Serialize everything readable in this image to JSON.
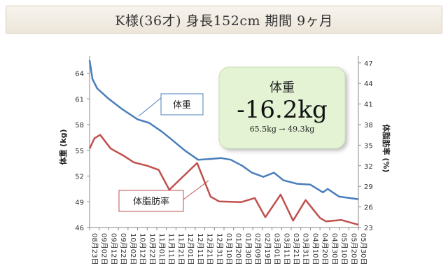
{
  "header": {
    "title": "K様(36才) 身長152cm 期間 9ヶ月"
  },
  "summary": {
    "label": "体重",
    "change": "-16.2kg",
    "detail": "65.5kg → 49.3kg",
    "box_color": "#e3f3d3"
  },
  "callouts": {
    "weight": "体重",
    "body_fat": "体脂肪率"
  },
  "chart_data": {
    "type": "line",
    "title": "",
    "xlabel": "",
    "ylabel": "体重 (kg)",
    "y2label": "体脂肪率 (%)",
    "ylim": [
      46,
      66
    ],
    "y2lim": [
      23,
      48
    ],
    "yticks": [
      46,
      49,
      52,
      55,
      58,
      61,
      64
    ],
    "y2ticks": [
      23,
      26,
      29,
      32,
      35,
      38,
      41,
      44,
      47
    ],
    "categories": [
      "08月23日",
      "09月02日",
      "09月12日",
      "09月22日",
      "10月02日",
      "10月12日",
      "10月22日",
      "11月01日",
      "11月11日",
      "11月21日",
      "12月01日",
      "12月11日",
      "12月21日",
      "12月31日",
      "01月10日",
      "01月20日",
      "01月30日",
      "02月09日",
      "02月19日",
      "03月01日",
      "03月11日",
      "03月21日",
      "03月31日",
      "04月10日",
      "04月20日",
      "04月30日",
      "05月10日",
      "05月20日",
      "05月30日"
    ],
    "series": [
      {
        "name": "体重",
        "axis": "left",
        "color": "#4a7ebb",
        "points": [
          {
            "x": "08月23日",
            "y": 65.5
          },
          {
            "x": "08月26日",
            "y": 63.3
          },
          {
            "x": "08月31日",
            "y": 62.2
          },
          {
            "x": "09月12日",
            "y": 61.0
          },
          {
            "x": "09月26日",
            "y": 59.8
          },
          {
            "x": "10月12日",
            "y": 58.6
          },
          {
            "x": "10月24日",
            "y": 58.2
          },
          {
            "x": "11月06日",
            "y": 57.2
          },
          {
            "x": "11月16日",
            "y": 56.3
          },
          {
            "x": "11月30日",
            "y": 55.0
          },
          {
            "x": "12月14日",
            "y": 53.9
          },
          {
            "x": "12月28日",
            "y": 54.0
          },
          {
            "x": "01月07日",
            "y": 54.1
          },
          {
            "x": "01月17日",
            "y": 53.9
          },
          {
            "x": "01月29日",
            "y": 53.2
          },
          {
            "x": "02月08日",
            "y": 52.4
          },
          {
            "x": "02月20日",
            "y": 51.9
          },
          {
            "x": "03月03日",
            "y": 52.4
          },
          {
            "x": "03月13日",
            "y": 51.5
          },
          {
            "x": "03月27日",
            "y": 51.1
          },
          {
            "x": "04月10日",
            "y": 51.0
          },
          {
            "x": "04月23日",
            "y": 50.1
          },
          {
            "x": "04月28日",
            "y": 50.5
          },
          {
            "x": "05月10日",
            "y": 49.6
          },
          {
            "x": "05月30日",
            "y": 49.3
          }
        ]
      },
      {
        "name": "体脂肪率",
        "axis": "right",
        "color": "#c0504d",
        "points": [
          {
            "x": "08月23日",
            "y": 34.5
          },
          {
            "x": "08月28日",
            "y": 36.0
          },
          {
            "x": "09月03日",
            "y": 36.5
          },
          {
            "x": "09月14日",
            "y": 34.5
          },
          {
            "x": "09月27日",
            "y": 33.5
          },
          {
            "x": "10月08日",
            "y": 32.5
          },
          {
            "x": "10月22日",
            "y": 32.0
          },
          {
            "x": "11月03日",
            "y": 31.4
          },
          {
            "x": "11月14日",
            "y": 28.5
          },
          {
            "x": "12月13日",
            "y": 32.4
          },
          {
            "x": "12月27日",
            "y": 27.5
          },
          {
            "x": "01月05日",
            "y": 26.8
          },
          {
            "x": "01月28日",
            "y": 26.7
          },
          {
            "x": "02月11日",
            "y": 27.3
          },
          {
            "x": "02月22日",
            "y": 24.5
          },
          {
            "x": "03月10日",
            "y": 27.8
          },
          {
            "x": "03月23日",
            "y": 24.0
          },
          {
            "x": "04月05日",
            "y": 27.0
          },
          {
            "x": "04月20日",
            "y": 24.4
          },
          {
            "x": "04月26日",
            "y": 23.9
          },
          {
            "x": "05月12日",
            "y": 24.1
          },
          {
            "x": "05月30日",
            "y": 23.4
          }
        ]
      }
    ],
    "grid": false,
    "legend": "callouts"
  }
}
